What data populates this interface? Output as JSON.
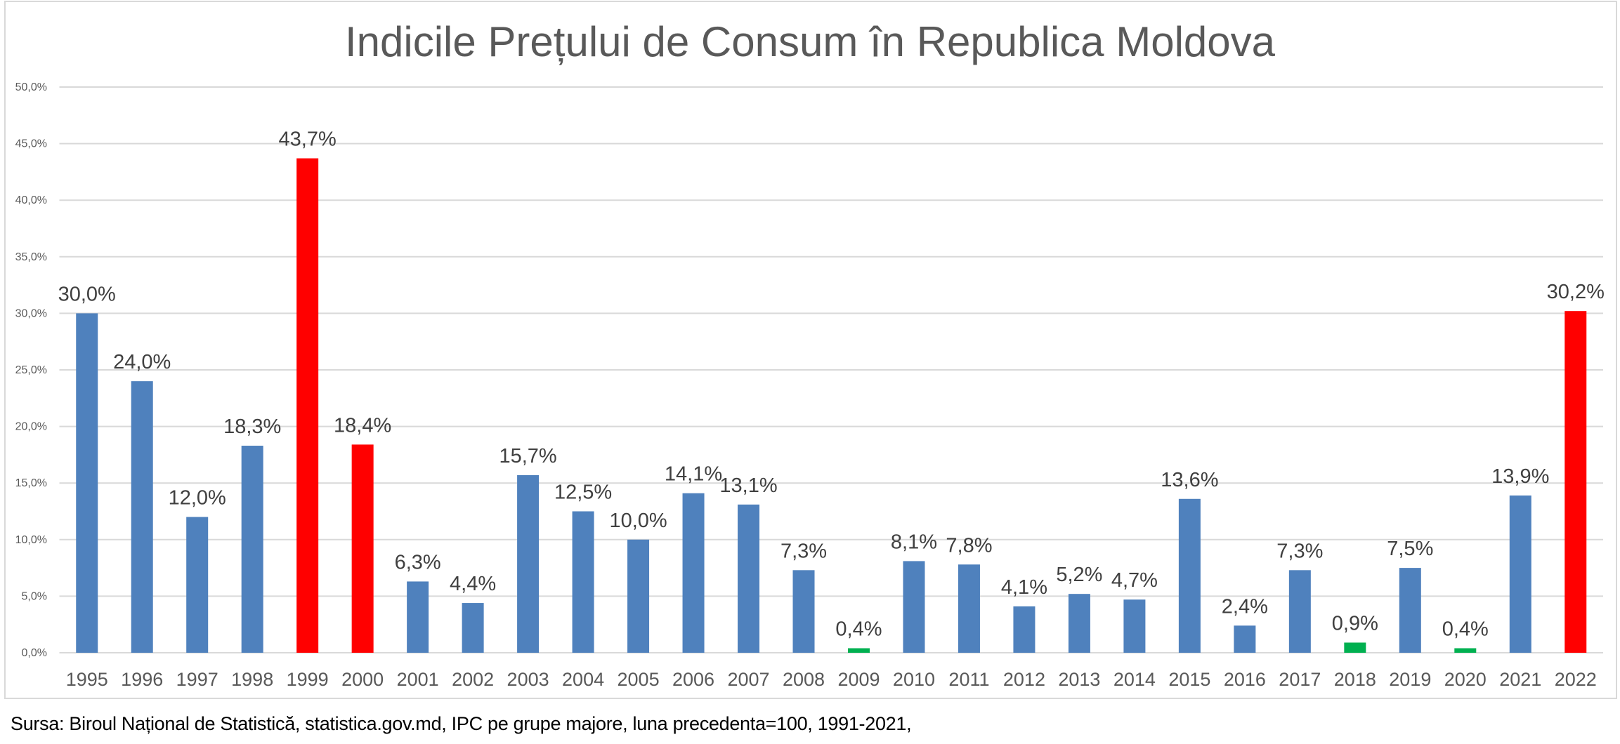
{
  "chart_data": {
    "type": "bar",
    "title": "Indicile Prețului de Consum în Republica Moldova",
    "xlabel": "",
    "ylabel": "",
    "ylim": [
      0,
      50
    ],
    "y_ticks": [
      "0,0%",
      "5,0%",
      "10,0%",
      "15,0%",
      "20,0%",
      "25,0%",
      "30,0%",
      "35,0%",
      "40,0%",
      "45,0%",
      "50,0%"
    ],
    "y_tick_values": [
      0,
      5,
      10,
      15,
      20,
      25,
      30,
      35,
      40,
      45,
      50
    ],
    "grid": true,
    "legend": "none",
    "categories": [
      "1995",
      "1996",
      "1997",
      "1998",
      "1999",
      "2000",
      "2001",
      "2002",
      "2003",
      "2004",
      "2005",
      "2006",
      "2007",
      "2008",
      "2009",
      "2010",
      "2011",
      "2012",
      "2013",
      "2014",
      "2015",
      "2016",
      "2017",
      "2018",
      "2019",
      "2020",
      "2021",
      "2022"
    ],
    "values": [
      30.0,
      24.0,
      12.0,
      18.3,
      43.7,
      18.4,
      6.3,
      4.4,
      15.7,
      12.5,
      10.0,
      14.1,
      13.1,
      7.3,
      0.4,
      8.1,
      7.8,
      4.1,
      5.2,
      4.7,
      13.6,
      2.4,
      7.3,
      0.9,
      7.5,
      0.4,
      13.9,
      30.2
    ],
    "data_labels": [
      "30,0%",
      "24,0%",
      "12,0%",
      "18,3%",
      "43,7%",
      "18,4%",
      "6,3%",
      "4,4%",
      "15,7%",
      "12,5%",
      "10,0%",
      "14,1%",
      "13,1%",
      "7,3%",
      "0,4%",
      "8,1%",
      "7,8%",
      "4,1%",
      "5,2%",
      "4,7%",
      "13,6%",
      "2,4%",
      "7,3%",
      "0,9%",
      "7,5%",
      "0,4%",
      "13,9%",
      "30,2%"
    ],
    "bar_colors": [
      "blue",
      "blue",
      "blue",
      "blue",
      "red",
      "red",
      "blue",
      "blue",
      "blue",
      "blue",
      "blue",
      "blue",
      "blue",
      "blue",
      "green",
      "blue",
      "blue",
      "blue",
      "blue",
      "blue",
      "blue",
      "blue",
      "blue",
      "green",
      "blue",
      "green",
      "blue",
      "red"
    ],
    "palette": {
      "blue": "#4f81bd",
      "red": "#ff0000",
      "green": "#00b050"
    }
  },
  "footer": {
    "source": "Sursa: Biroul Național de Statistică, statistica.gov.md,  IPC pe grupe majore, luna precedenta=100, 1991-2021,"
  }
}
